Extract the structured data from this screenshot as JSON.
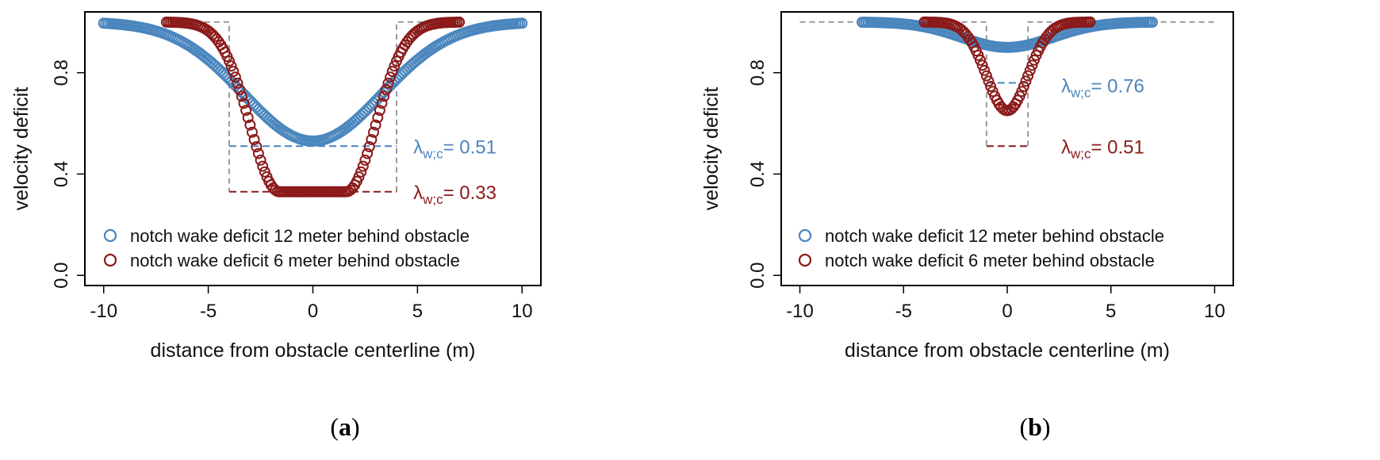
{
  "colors": {
    "blue": "#4a86be",
    "red": "#8b1a1a",
    "gray": "#9a9a9a",
    "axis": "#000000"
  },
  "chart_data": [
    {
      "type": "scatter",
      "panel_label": "a",
      "xlabel": "distance from obstacle centerline (m)",
      "ylabel": "velocity deficit",
      "xlim": [
        -10.9,
        10.9
      ],
      "ylim": [
        -0.04,
        1.04
      ],
      "xticks": [
        -10,
        -5,
        0,
        5,
        10
      ],
      "xtick_labels": [
        "-10",
        "-5",
        "0",
        "5",
        "10"
      ],
      "yticks": [
        0.0,
        0.4,
        0.8
      ],
      "ytick_labels": [
        "0.0",
        "0.4",
        "0.8"
      ],
      "legend": [
        {
          "label": "notch wake deficit 12 meter behind obstacle",
          "color": "blue"
        },
        {
          "label": "notch wake deficit 6 meter behind obstacle",
          "color": "red"
        }
      ],
      "series": [
        {
          "name": "notch wake deficit 12 meter behind obstacle",
          "color": "blue",
          "x_range": [
            -10,
            10
          ],
          "center": 0,
          "min": 0.53,
          "sigma": 3.3,
          "notch_width": 8,
          "lambda": 0.51,
          "lambda_label": "λw;c= 0.51"
        },
        {
          "name": "notch wake deficit 6 meter behind obstacle",
          "color": "red",
          "x_range": [
            -7,
            7
          ],
          "center": 0,
          "min": 0.33,
          "sigma": 1.4,
          "notch_width": 8,
          "lambda": 0.33,
          "lambda_label": "λw;c= 0.33"
        }
      ]
    },
    {
      "type": "scatter",
      "panel_label": "b",
      "xlabel": "distance from obstacle centerline (m)",
      "ylabel": "velocity deficit",
      "xlim": [
        -10.9,
        10.9
      ],
      "ylim": [
        -0.04,
        1.04
      ],
      "xticks": [
        -10,
        -5,
        0,
        5,
        10
      ],
      "xtick_labels": [
        "-10",
        "-5",
        "0",
        "5",
        "10"
      ],
      "yticks": [
        0.0,
        0.4,
        0.8
      ],
      "ytick_labels": [
        "0.0",
        "0.4",
        "0.8"
      ],
      "legend": [
        {
          "label": "notch wake deficit 12 meter behind obstacle",
          "color": "blue"
        },
        {
          "label": "notch wake deficit 6 meter behind obstacle",
          "color": "red"
        }
      ],
      "series": [
        {
          "name": "notch wake deficit 12 meter behind obstacle",
          "color": "blue",
          "x_range": [
            -7,
            7
          ],
          "center": 0,
          "min": 0.9,
          "sigma": 2.2,
          "notch_width": 2,
          "lambda": 0.76,
          "lambda_label": "λw;c= 0.76"
        },
        {
          "name": "notch wake deficit 6 meter behind obstacle",
          "color": "red",
          "x_range": [
            -4,
            4
          ],
          "center": 0,
          "min": 0.65,
          "sigma": 1.0,
          "notch_width": 2,
          "lambda": 0.51,
          "lambda_label": "λw;c= 0.51"
        }
      ]
    }
  ]
}
